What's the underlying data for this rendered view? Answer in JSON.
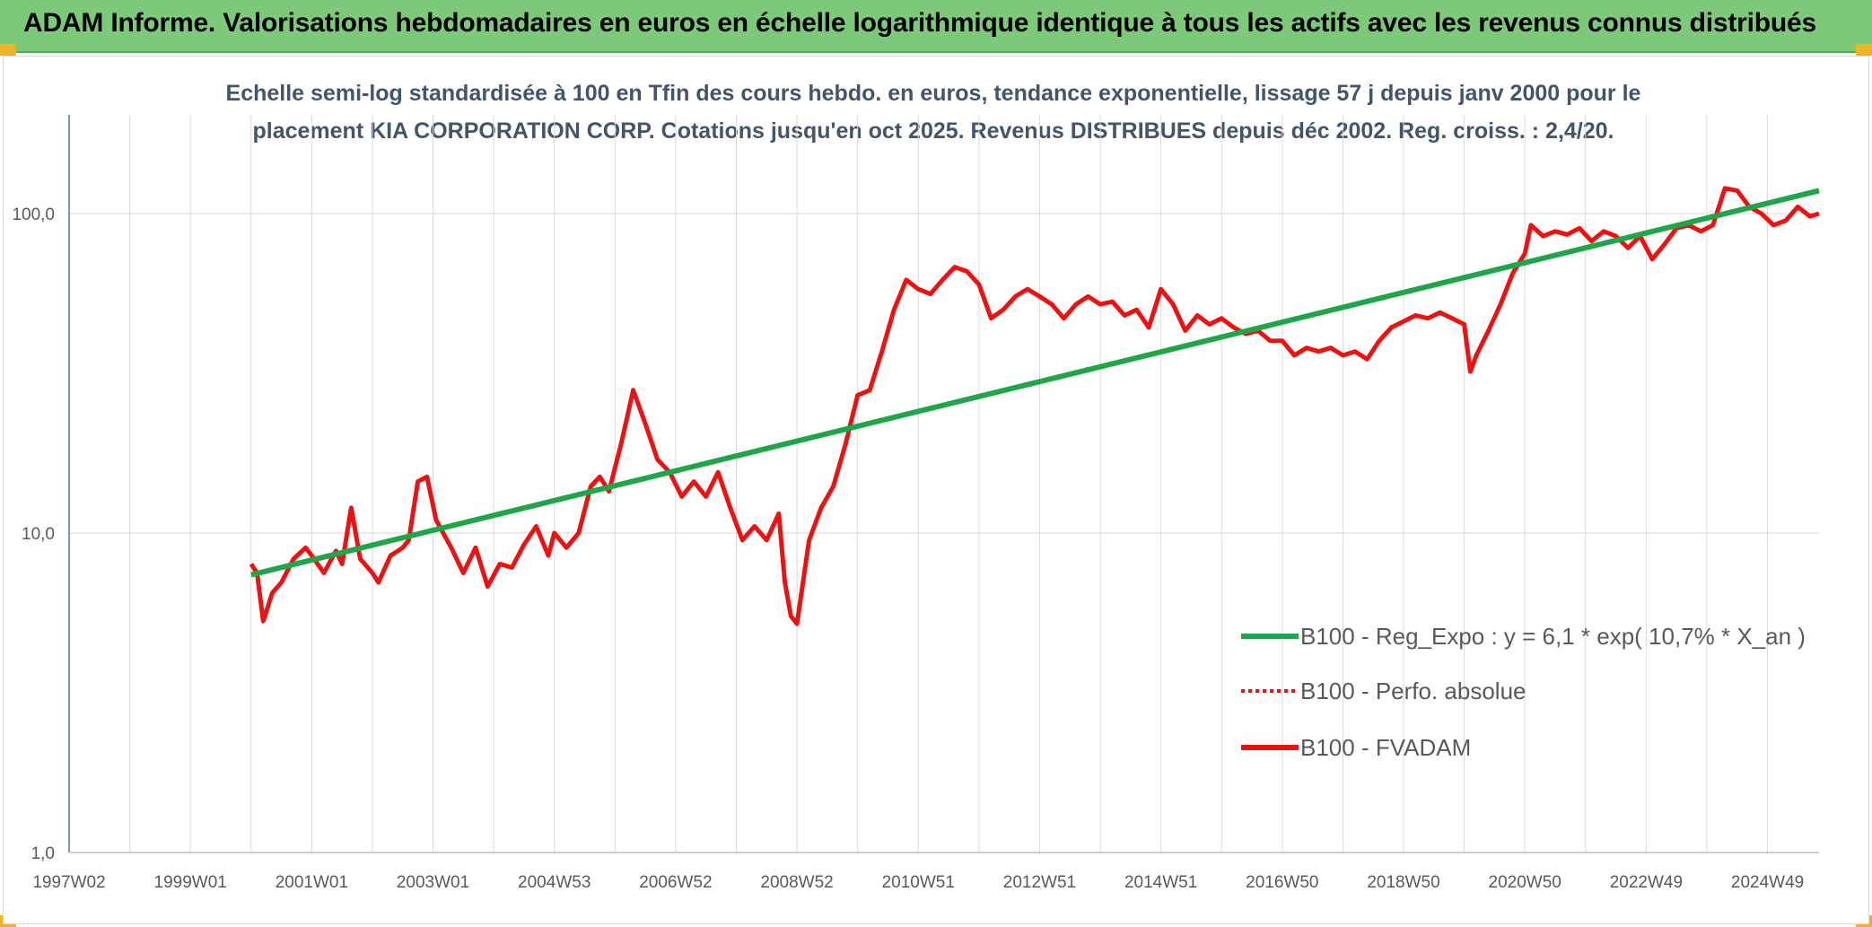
{
  "banner": {
    "title": "ADAM Informe. Valorisations hebdomadaires en euros en échelle logarithmique identique à tous les actifs avec les revenus connus distribués"
  },
  "colors": {
    "banner_bg": "#7dc97a",
    "corner_marks": "#f0b323",
    "regression_line": "#1fa64a",
    "price_line": "#ee1111",
    "subtitle_text": "#44546a",
    "axis_text": "#595959",
    "grid": "#d9d9d9"
  },
  "chart_data": {
    "type": "line",
    "title_lines": [
      "Echelle semi-log standardisée à 100 en Tfin des cours hebdo. en euros, tendance exponentielle, lissage 57 j depuis janv 2000 pour le",
      "placement KIA CORPORATION CORP. Cotations jusqu'en oct 2025. Revenus DISTRIBUES depuis déc 2002. Reg. croiss. : 2,4/20."
    ],
    "y_scale": "log",
    "ylim": [
      1,
      200
    ],
    "y_ticks": [
      {
        "value": 1,
        "label": "1,0"
      },
      {
        "value": 10,
        "label": "10,0"
      },
      {
        "value": 100,
        "label": "100,0"
      }
    ],
    "xlim": [
      1997.0,
      2025.85
    ],
    "x_ticks": [
      {
        "value": 1997.0,
        "label": "1997W02"
      },
      {
        "value": 1999.0,
        "label": "1999W01"
      },
      {
        "value": 2001.0,
        "label": "2001W01"
      },
      {
        "value": 2003.0,
        "label": "2003W01"
      },
      {
        "value": 2005.0,
        "label": "2004W53"
      },
      {
        "value": 2007.0,
        "label": "2006W52"
      },
      {
        "value": 2009.0,
        "label": "2008W52"
      },
      {
        "value": 2011.0,
        "label": "2010W51"
      },
      {
        "value": 2013.0,
        "label": "2012W51"
      },
      {
        "value": 2015.0,
        "label": "2014W51"
      },
      {
        "value": 2017.0,
        "label": "2016W50"
      },
      {
        "value": 2019.0,
        "label": "2018W50"
      },
      {
        "value": 2021.0,
        "label": "2020W50"
      },
      {
        "value": 2023.0,
        "label": "2022W49"
      },
      {
        "value": 2025.0,
        "label": "2024W49"
      }
    ],
    "grid": true,
    "legend_position": "bottom-right",
    "series": [
      {
        "name": "B100 - Reg_Expo : y = 6,1 * exp( 10,7% *  X_an )",
        "color": "#1fa64a",
        "style": "solid",
        "x": [
          2000.0,
          2025.85
        ],
        "y": [
          7.4,
          118
        ]
      },
      {
        "name": "B100 - Perfo. absolue",
        "color": "#ee1111",
        "style": "dotted",
        "x": [],
        "y": []
      },
      {
        "name": "B100 - FVADAM",
        "color": "#ee1111",
        "style": "solid",
        "x": [
          2000.0,
          2000.1,
          2000.2,
          2000.35,
          2000.5,
          2000.7,
          2000.9,
          2001.0,
          2001.2,
          2001.4,
          2001.5,
          2001.65,
          2001.8,
          2002.0,
          2002.1,
          2002.3,
          2002.5,
          2002.6,
          2002.75,
          2002.9,
          2003.05,
          2003.3,
          2003.5,
          2003.7,
          2003.9,
          2004.1,
          2004.3,
          2004.5,
          2004.7,
          2004.9,
          2005.0,
          2005.2,
          2005.4,
          2005.6,
          2005.75,
          2005.9,
          2006.1,
          2006.3,
          2006.5,
          2006.7,
          2006.9,
          2007.1,
          2007.3,
          2007.5,
          2007.7,
          2007.9,
          2008.1,
          2008.3,
          2008.5,
          2008.7,
          2008.8,
          2008.9,
          2009.0,
          2009.2,
          2009.4,
          2009.6,
          2009.8,
          2010.0,
          2010.2,
          2010.4,
          2010.6,
          2010.8,
          2011.0,
          2011.2,
          2011.4,
          2011.6,
          2011.8,
          2012.0,
          2012.2,
          2012.4,
          2012.6,
          2012.8,
          2013.0,
          2013.2,
          2013.4,
          2013.6,
          2013.8,
          2014.0,
          2014.2,
          2014.4,
          2014.6,
          2014.8,
          2015.0,
          2015.2,
          2015.4,
          2015.6,
          2015.8,
          2016.0,
          2016.2,
          2016.4,
          2016.6,
          2016.8,
          2017.0,
          2017.2,
          2017.4,
          2017.6,
          2017.8,
          2018.0,
          2018.2,
          2018.4,
          2018.6,
          2018.8,
          2019.0,
          2019.2,
          2019.4,
          2019.6,
          2019.8,
          2020.0,
          2020.1,
          2020.2,
          2020.4,
          2020.6,
          2020.8,
          2021.0,
          2021.1,
          2021.3,
          2021.5,
          2021.7,
          2021.9,
          2022.1,
          2022.3,
          2022.5,
          2022.7,
          2022.9,
          2023.1,
          2023.3,
          2023.5,
          2023.7,
          2023.9,
          2024.1,
          2024.3,
          2024.5,
          2024.7,
          2024.9,
          2025.1,
          2025.3,
          2025.5,
          2025.7,
          2025.85
        ],
        "y": [
          8.0,
          7.5,
          5.3,
          6.5,
          7.0,
          8.3,
          9.0,
          8.5,
          7.5,
          8.8,
          8.0,
          12.0,
          8.3,
          7.5,
          7.0,
          8.5,
          9.0,
          9.5,
          14.5,
          15.0,
          11.0,
          9.0,
          7.5,
          9.0,
          6.8,
          8.0,
          7.8,
          9.2,
          10.5,
          8.5,
          10.0,
          9.0,
          10.0,
          14.0,
          15.0,
          13.5,
          19.0,
          28.0,
          22.0,
          17.0,
          15.5,
          13.0,
          14.5,
          13.0,
          15.5,
          12.0,
          9.5,
          10.5,
          9.5,
          11.5,
          7.0,
          5.5,
          5.2,
          9.5,
          12.0,
          14.0,
          19.0,
          27.0,
          28.0,
          37.0,
          50.0,
          62.0,
          58.0,
          56.0,
          62.0,
          68.0,
          66.0,
          60.0,
          47.0,
          50.0,
          55.0,
          58.0,
          55.0,
          52.0,
          47.0,
          52.0,
          55.0,
          52.0,
          53.0,
          48.0,
          50.0,
          44.0,
          58.0,
          52.0,
          43.0,
          48.0,
          45.0,
          47.0,
          44.0,
          42.0,
          43.0,
          40.0,
          40.0,
          36.0,
          38.0,
          37.0,
          38.0,
          36.0,
          37.0,
          35.0,
          40.0,
          44.0,
          46.0,
          48.0,
          47.0,
          49.0,
          47.0,
          45.0,
          32.0,
          36.0,
          43.0,
          52.0,
          65.0,
          75.0,
          92.0,
          85.0,
          88.0,
          86.0,
          90.0,
          82.0,
          88.0,
          85.0,
          78.0,
          85.0,
          72.0,
          80.0,
          90.0,
          92.0,
          88.0,
          92.0,
          120.0,
          118.0,
          105.0,
          100.0,
          92.0,
          95.0,
          105.0,
          98.0,
          100.0
        ]
      }
    ]
  }
}
